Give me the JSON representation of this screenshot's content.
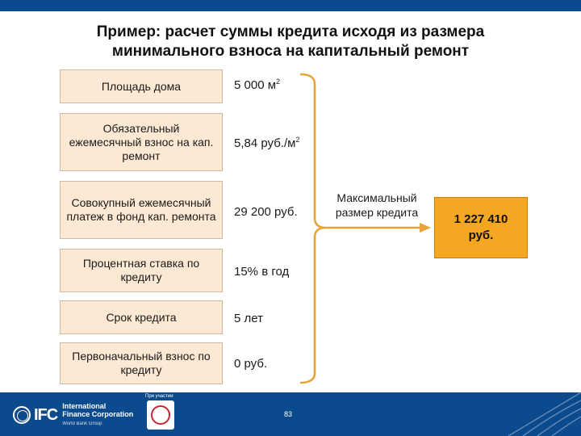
{
  "title": {
    "line1": "Пример: расчет суммы кредита исходя из размера",
    "line2": "минимального взноса на капитальный ремонт"
  },
  "rows": [
    {
      "label": "Площадь дома",
      "value": "5 000 м",
      "value_sup": "2"
    },
    {
      "label": "Обязательный ежемесячный взнос на кап. ремонт",
      "value": "5,84 руб./м",
      "value_sup": "2"
    },
    {
      "label": "Совокупный ежемесячный платеж в фонд кап. ремонта",
      "value": "29 200 руб.",
      "value_sup": ""
    },
    {
      "label": "Процентная ставка по кредиту",
      "value": "15% в год",
      "value_sup": ""
    },
    {
      "label": "Срок кредита",
      "value": "5 лет",
      "value_sup": ""
    },
    {
      "label": "Первоначальный взнос по кредиту",
      "value": "0 руб.",
      "value_sup": ""
    }
  ],
  "max_credit_label": "Максимальный размер кредита",
  "result": {
    "line1": "1 227 410",
    "line2": "руб."
  },
  "footer": {
    "logo_letters": "IFC",
    "logo_line1": "International",
    "logo_line2": "Finance Corporation",
    "logo_line3": "World Bank Group",
    "partner_label": "При участии",
    "page_number": "83"
  },
  "colors": {
    "box_fill": "#fde9d3",
    "result_fill": "#f5a623",
    "bracket": "#e8a23a",
    "footer": "#0b4a8c"
  }
}
